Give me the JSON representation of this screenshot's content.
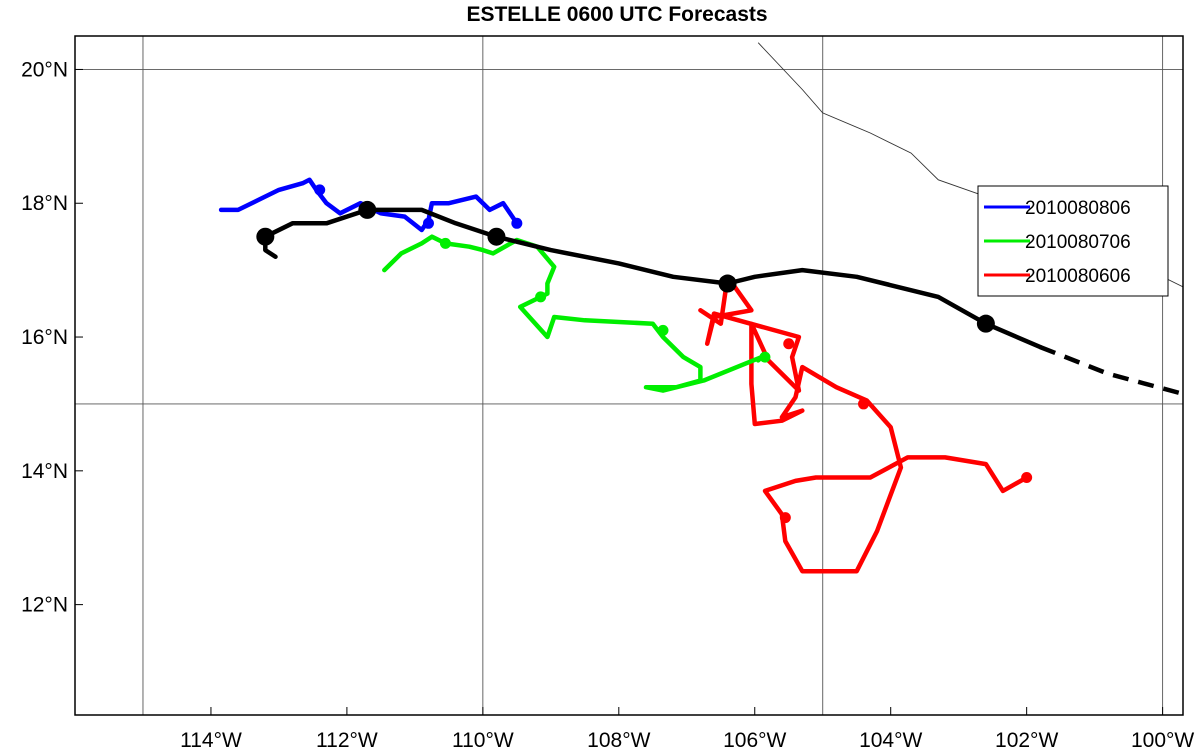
{
  "chart_data": {
    "type": "line",
    "title": "ESTELLE 0600 UTC Forecasts",
    "xlim": [
      -116.0,
      -99.7
    ],
    "ylim": [
      10.35,
      20.5
    ],
    "grid": true,
    "legend_position": "right",
    "x_ticks": [
      {
        "value": -114,
        "label": "114°W"
      },
      {
        "value": -112,
        "label": "112°W"
      },
      {
        "value": -110,
        "label": "110°W"
      },
      {
        "value": -108,
        "label": "108°W"
      },
      {
        "value": -106,
        "label": "106°W"
      },
      {
        "value": -104,
        "label": "104°W"
      },
      {
        "value": -102,
        "label": "102°W"
      },
      {
        "value": -100,
        "label": "100°W"
      }
    ],
    "y_ticks": [
      {
        "value": 12,
        "label": "12°N"
      },
      {
        "value": 14,
        "label": "14°N"
      },
      {
        "value": 16,
        "label": "16°N"
      },
      {
        "value": 18,
        "label": "18°N"
      },
      {
        "value": 20,
        "label": "20°N"
      }
    ],
    "grid_lon": [
      -115,
      -110,
      -105,
      -100
    ],
    "grid_lat": [
      15,
      20
    ],
    "coastline": [
      [
        -105.95,
        20.4
      ],
      [
        -105.3,
        19.7
      ],
      [
        -105.0,
        19.35
      ],
      [
        -104.3,
        19.05
      ],
      [
        -103.7,
        18.75
      ],
      [
        -103.3,
        18.35
      ],
      [
        -102.6,
        18.1
      ],
      [
        -101.7,
        17.9
      ],
      [
        -101.0,
        17.55
      ],
      [
        -100.4,
        17.1
      ],
      [
        -99.7,
        16.75
      ]
    ],
    "observed_track": {
      "name": "",
      "color": "#000000",
      "points": [
        [
          -113.05,
          17.2
        ],
        [
          -113.2,
          17.3
        ],
        [
          -113.2,
          17.5
        ],
        [
          -112.8,
          17.7
        ],
        [
          -112.3,
          17.7
        ],
        [
          -111.7,
          17.9
        ],
        [
          -111.2,
          17.9
        ],
        [
          -110.9,
          17.9
        ],
        [
          -110.4,
          17.7
        ],
        [
          -109.8,
          17.5
        ],
        [
          -109.0,
          17.3
        ],
        [
          -108.0,
          17.1
        ],
        [
          -107.2,
          16.9
        ],
        [
          -106.4,
          16.8
        ],
        [
          -106.0,
          16.9
        ],
        [
          -105.3,
          17.0
        ],
        [
          -104.5,
          16.9
        ],
        [
          -103.3,
          16.6
        ],
        [
          -102.6,
          16.2
        ],
        [
          -101.8,
          15.85
        ]
      ],
      "dashed": [
        [
          -101.8,
          15.85
        ],
        [
          -100.8,
          15.45
        ],
        [
          -99.7,
          15.15
        ]
      ],
      "markers": [
        [
          -113.2,
          17.5
        ],
        [
          -111.7,
          17.9
        ],
        [
          -109.8,
          17.5
        ],
        [
          -106.4,
          16.8
        ],
        [
          -102.6,
          16.2
        ]
      ]
    },
    "series": [
      {
        "name": "2010080806",
        "color": "#0000ff",
        "points": [
          [
            -113.85,
            17.9
          ],
          [
            -113.6,
            17.9
          ],
          [
            -113.3,
            18.05
          ],
          [
            -113.0,
            18.2
          ],
          [
            -112.65,
            18.3
          ],
          [
            -112.55,
            18.35
          ],
          [
            -112.45,
            18.2
          ],
          [
            -112.3,
            18.0
          ],
          [
            -112.1,
            17.85
          ],
          [
            -111.8,
            18.0
          ],
          [
            -111.5,
            17.85
          ],
          [
            -111.15,
            17.8
          ],
          [
            -110.9,
            17.6
          ],
          [
            -110.8,
            17.75
          ],
          [
            -110.75,
            18.0
          ],
          [
            -110.5,
            18.0
          ],
          [
            -110.1,
            18.1
          ],
          [
            -109.9,
            17.9
          ],
          [
            -109.7,
            18.0
          ],
          [
            -109.5,
            17.7
          ]
        ],
        "markers": [
          [
            -112.4,
            18.2
          ],
          [
            -110.8,
            17.7
          ],
          [
            -109.5,
            17.7
          ]
        ]
      },
      {
        "name": "2010080706",
        "color": "#00ee00",
        "points": [
          [
            -111.45,
            17.0
          ],
          [
            -111.2,
            17.25
          ],
          [
            -110.9,
            17.4
          ],
          [
            -110.75,
            17.5
          ],
          [
            -110.55,
            17.4
          ],
          [
            -110.2,
            17.35
          ],
          [
            -110.0,
            17.3
          ],
          [
            -109.85,
            17.25
          ],
          [
            -109.5,
            17.45
          ],
          [
            -109.2,
            17.35
          ],
          [
            -108.95,
            17.05
          ],
          [
            -109.05,
            16.8
          ],
          [
            -109.05,
            16.65
          ],
          [
            -109.45,
            16.45
          ],
          [
            -109.05,
            16.0
          ],
          [
            -108.95,
            16.3
          ],
          [
            -108.5,
            16.25
          ],
          [
            -107.5,
            16.2
          ],
          [
            -107.35,
            16.0
          ],
          [
            -107.05,
            15.7
          ],
          [
            -106.8,
            15.55
          ],
          [
            -106.8,
            15.35
          ],
          [
            -107.15,
            15.25
          ],
          [
            -107.6,
            15.25
          ],
          [
            -107.35,
            15.2
          ],
          [
            -106.75,
            15.35
          ],
          [
            -105.9,
            15.7
          ],
          [
            -105.95,
            15.65
          ]
        ],
        "markers": [
          [
            -110.55,
            17.4
          ],
          [
            -109.15,
            16.6
          ],
          [
            -107.35,
            16.1
          ],
          [
            -105.85,
            15.7
          ]
        ]
      },
      {
        "name": "2010080606",
        "color": "#ff0000",
        "points": [
          [
            -106.8,
            16.4
          ],
          [
            -106.5,
            16.2
          ],
          [
            -106.4,
            16.9
          ],
          [
            -106.05,
            16.4
          ],
          [
            -106.6,
            16.3
          ],
          [
            -106.7,
            15.9
          ],
          [
            -106.6,
            16.35
          ],
          [
            -105.35,
            16.0
          ],
          [
            -105.45,
            15.7
          ],
          [
            -105.35,
            15.2
          ],
          [
            -105.8,
            15.65
          ],
          [
            -106.05,
            16.2
          ],
          [
            -106.05,
            15.3
          ],
          [
            -106.0,
            14.7
          ],
          [
            -105.6,
            14.75
          ],
          [
            -105.3,
            14.9
          ],
          [
            -105.6,
            14.8
          ],
          [
            -105.4,
            15.1
          ],
          [
            -105.3,
            15.55
          ],
          [
            -104.8,
            15.25
          ],
          [
            -104.35,
            15.05
          ],
          [
            -104.0,
            14.65
          ],
          [
            -103.85,
            14.05
          ],
          [
            -104.2,
            13.1
          ],
          [
            -104.5,
            12.5
          ],
          [
            -105.3,
            12.5
          ],
          [
            -105.55,
            12.95
          ],
          [
            -105.6,
            13.35
          ],
          [
            -105.85,
            13.7
          ],
          [
            -105.4,
            13.85
          ],
          [
            -105.1,
            13.9
          ],
          [
            -104.3,
            13.9
          ],
          [
            -103.75,
            14.2
          ],
          [
            -103.2,
            14.2
          ],
          [
            -102.6,
            14.1
          ],
          [
            -102.35,
            13.7
          ],
          [
            -102.0,
            13.9
          ]
        ],
        "markers": [
          [
            -105.5,
            15.9
          ],
          [
            -104.4,
            15.0
          ],
          [
            -105.55,
            13.3
          ],
          [
            -102.0,
            13.9
          ]
        ]
      }
    ]
  }
}
